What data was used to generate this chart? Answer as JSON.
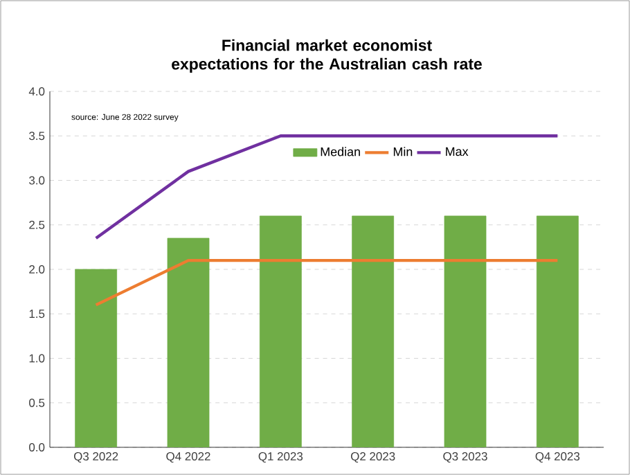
{
  "chart_data": {
    "type": "bar",
    "title": "Financial market economist expectations for the Australian cash rate",
    "annotations": [
      "source:  June 28 2022 survey"
    ],
    "categories": [
      "Q3 2022",
      "Q4 2022",
      "Q1 2023",
      "Q2 2023",
      "Q3 2023",
      "Q4 2023"
    ],
    "series": [
      {
        "name": "Median",
        "color": "#70ad47",
        "values": [
          2.0,
          2.35,
          2.6,
          2.6,
          2.6,
          2.6
        ]
      },
      {
        "name": "Min",
        "type": "line",
        "color": "#ed7d31",
        "values": [
          1.6,
          2.1,
          2.1,
          2.1,
          2.1,
          2.1
        ]
      },
      {
        "name": "Max",
        "type": "line",
        "color": "#7030a0",
        "values": [
          2.35,
          3.1,
          3.5,
          3.5,
          3.5,
          3.5
        ]
      }
    ],
    "ylim": [
      0,
      4
    ],
    "yticks": [
      {
        "value": 0,
        "label": "0.0"
      },
      {
        "value": 0.5,
        "label": "0.5"
      },
      {
        "value": 1,
        "label": "1.0"
      },
      {
        "value": 1.5,
        "label": "1.5"
      },
      {
        "value": 2,
        "label": "2.0"
      },
      {
        "value": 2.5,
        "label": "2.5"
      },
      {
        "value": 3,
        "label": "3.0"
      },
      {
        "value": 3.5,
        "label": "3.5"
      },
      {
        "value": 4,
        "label": "4.0"
      }
    ],
    "grid": "y",
    "legend": "top",
    "marker": "none"
  }
}
